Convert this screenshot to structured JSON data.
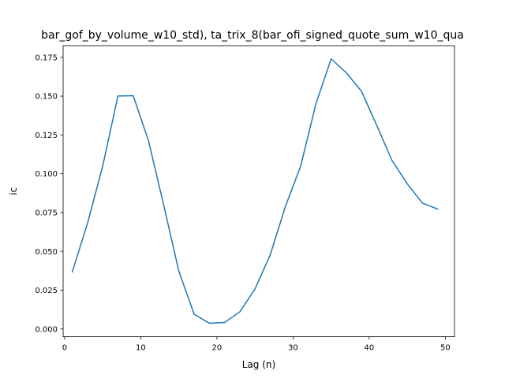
{
  "chart_data": {
    "type": "line",
    "title": "bar_gof_by_volume_w10_std), ta_trix_8(bar_ofi_signed_quote_sum_w10_qua",
    "xlabel": "Lag (n)",
    "ylabel": "ic",
    "xlim": [
      -0.2,
      51.2
    ],
    "ylim": [
      -0.005,
      0.1825
    ],
    "xticks": [
      0,
      10,
      20,
      30,
      40,
      50
    ],
    "xtick_labels": [
      "0",
      "10",
      "20",
      "30",
      "40",
      "50"
    ],
    "yticks": [
      0.0,
      0.025,
      0.05,
      0.075,
      0.1,
      0.125,
      0.15,
      0.175
    ],
    "ytick_labels": [
      "0.000",
      "0.025",
      "0.050",
      "0.075",
      "0.100",
      "0.125",
      "0.150",
      "0.175"
    ],
    "grid": false,
    "series": [
      {
        "color": "#1f77b4",
        "x": [
          1,
          3,
          5,
          7,
          9,
          11,
          13,
          15,
          17,
          19,
          21,
          23,
          25,
          27,
          29,
          31,
          33,
          35,
          37,
          39,
          41,
          43,
          45,
          47,
          49
        ],
        "y": [
          0.0368,
          0.068,
          0.105,
          0.1501,
          0.1503,
          0.1215,
          0.08,
          0.0372,
          0.0095,
          0.0037,
          0.0042,
          0.011,
          0.0258,
          0.0478,
          0.079,
          0.105,
          0.145,
          0.174,
          0.165,
          0.153,
          0.131,
          0.1085,
          0.0935,
          0.081,
          0.0772
        ]
      }
    ]
  }
}
